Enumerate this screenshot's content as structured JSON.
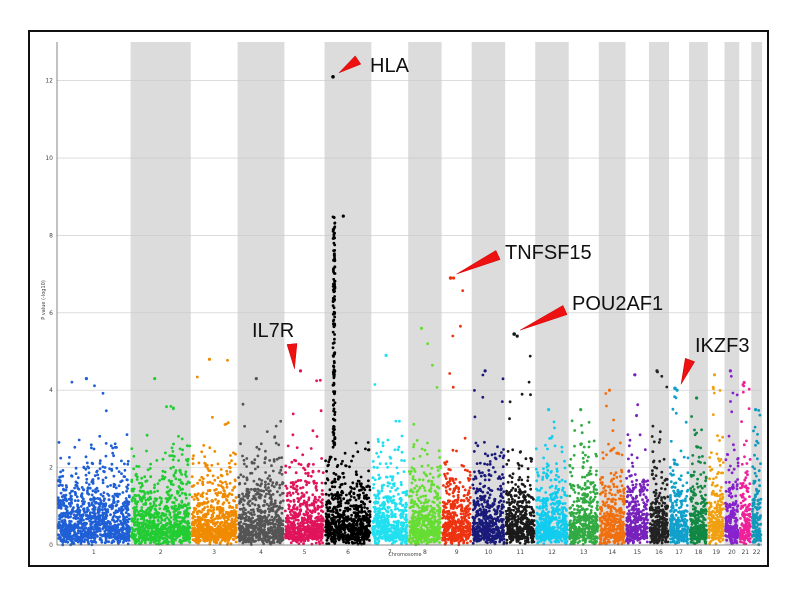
{
  "chart_data": {
    "type": "scatter",
    "title": "",
    "xlabel": "Chromosome",
    "ylabel": "P value (-log10)",
    "ylim": [
      0,
      13
    ],
    "yticks": [
      0,
      2,
      4,
      6,
      8,
      10,
      12
    ],
    "grid": true,
    "chromosomes": [
      {
        "name": "1",
        "color": "#1f5fd6",
        "shaded": false,
        "max": 4.3
      },
      {
        "name": "2",
        "color": "#22cc33",
        "shaded": true,
        "max": 4.3
      },
      {
        "name": "3",
        "color": "#f08a00",
        "shaded": false,
        "max": 4.8
      },
      {
        "name": "4",
        "color": "#555555",
        "shaded": true,
        "max": 4.3
      },
      {
        "name": "5",
        "color": "#e0145a",
        "shaded": false,
        "max": 4.5
      },
      {
        "name": "6",
        "color": "#000000",
        "shaded": true,
        "max": 8.5
      },
      {
        "name": "7",
        "color": "#22e0f0",
        "shaded": false,
        "max": 4.9
      },
      {
        "name": "8",
        "color": "#66dd33",
        "shaded": true,
        "max": 5.6
      },
      {
        "name": "9",
        "color": "#ee3311",
        "shaded": false,
        "max": 6.9
      },
      {
        "name": "10",
        "color": "#1a1a7a",
        "shaded": true,
        "max": 4.5
      },
      {
        "name": "11",
        "color": "#1a1a1a",
        "shaded": false,
        "max": 5.4
      },
      {
        "name": "12",
        "color": "#11ccee",
        "shaded": true,
        "max": 3.5
      },
      {
        "name": "13",
        "color": "#33aa44",
        "shaded": false,
        "max": 3.5
      },
      {
        "name": "14",
        "color": "#f07010",
        "shaded": true,
        "max": 4.0
      },
      {
        "name": "15",
        "color": "#7722bb",
        "shaded": false,
        "max": 4.4
      },
      {
        "name": "16",
        "color": "#222222",
        "shaded": true,
        "max": 4.5
      },
      {
        "name": "17",
        "color": "#11a0cc",
        "shaded": false,
        "max": 4.0
      },
      {
        "name": "18",
        "color": "#118844",
        "shaded": true,
        "max": 3.8
      },
      {
        "name": "19",
        "color": "#f0a010",
        "shaded": false,
        "max": 4.4
      },
      {
        "name": "20",
        "color": "#8822cc",
        "shaded": true,
        "max": 4.5
      },
      {
        "name": "21",
        "color": "#ee2299",
        "shaded": false,
        "max": 4.2
      },
      {
        "name": "22",
        "color": "#1199bb",
        "shaded": true,
        "max": 3.5
      }
    ],
    "highlight_points": [
      {
        "chr": "6",
        "y": 12.1
      },
      {
        "chr": "9",
        "y": 6.9
      },
      {
        "chr": "11",
        "y": 5.45
      },
      {
        "chr": "17",
        "y": 4.05
      }
    ],
    "annotations": [
      {
        "label": "HLA",
        "chr": "6",
        "y": 12.1
      },
      {
        "label": "TNFSF15",
        "chr": "9",
        "y": 6.9
      },
      {
        "label": "POU2AF1",
        "chr": "11",
        "y": 5.45
      },
      {
        "label": "IL7R",
        "chr": "5",
        "y": 4.4
      },
      {
        "label": "IKZF3",
        "chr": "17",
        "y": 4.05
      }
    ]
  }
}
